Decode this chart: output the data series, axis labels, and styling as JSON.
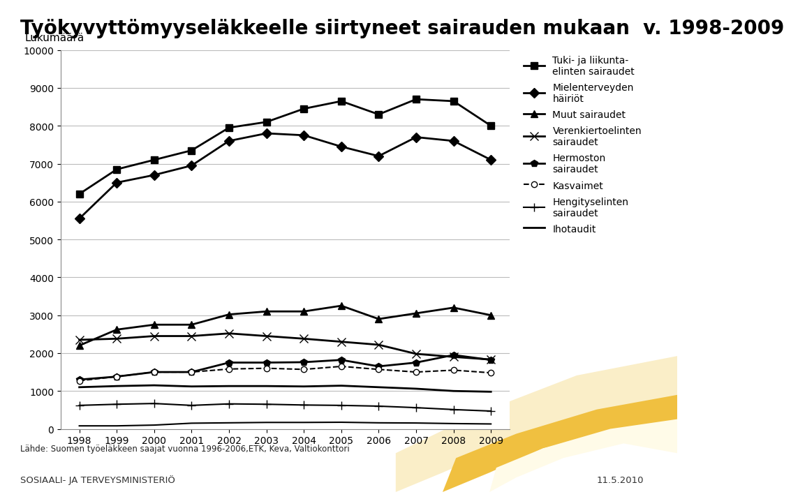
{
  "title": "Työkyvyttömyyseläkkeelle siirtyneet sairauden mukaan  v. 1998-2009",
  "ylabel": "Lukumäärä",
  "xlabel_note": "Lähde: Suomen työeläkkeen saajat vuonna 1996-2006,ETK, Keva, Valtiokonttori",
  "footer_left": "SOSIAALI- JA TERVEYSMINISTERIÖ",
  "footer_right": "11.5.2010",
  "years": [
    1998,
    1999,
    2000,
    2001,
    2002,
    2003,
    2004,
    2005,
    2006,
    2007,
    2008,
    2009
  ],
  "series": [
    {
      "label": "Tuki- ja liikunta-\nelinten sairaudet",
      "marker": "s",
      "linestyle": "-",
      "color": "#000000",
      "linewidth": 2.0,
      "markersize": 7,
      "markerfacecolor": "#000000",
      "values": [
        6200,
        6850,
        7100,
        7350,
        7950,
        8100,
        8450,
        8650,
        8300,
        8700,
        8650,
        8000
      ]
    },
    {
      "label": "Mielenterveyden\nhäiriöt",
      "marker": "D",
      "linestyle": "-",
      "color": "#000000",
      "linewidth": 2.0,
      "markersize": 7,
      "markerfacecolor": "#000000",
      "values": [
        5550,
        6500,
        6700,
        6950,
        7600,
        7800,
        7750,
        7450,
        7200,
        7700,
        7600,
        7100
      ]
    },
    {
      "label": "Muut sairaudet",
      "marker": "^",
      "linestyle": "-",
      "color": "#000000",
      "linewidth": 2.0,
      "markersize": 7,
      "markerfacecolor": "#000000",
      "values": [
        2200,
        2620,
        2750,
        2750,
        3020,
        3100,
        3100,
        3250,
        2900,
        3050,
        3200,
        3000
      ]
    },
    {
      "label": "Verenkiertoelinten\nsairaudet",
      "marker": "x",
      "linestyle": "-",
      "color": "#000000",
      "linewidth": 2.0,
      "markersize": 8,
      "markerfacecolor": "#000000",
      "values": [
        2350,
        2380,
        2450,
        2450,
        2520,
        2450,
        2380,
        2300,
        2220,
        1980,
        1900,
        1830
      ]
    },
    {
      "label": "Hermoston\nsairaudet",
      "marker": "p",
      "linestyle": "-",
      "color": "#000000",
      "linewidth": 2.0,
      "markersize": 7,
      "markerfacecolor": "#000000",
      "values": [
        1300,
        1380,
        1500,
        1500,
        1750,
        1750,
        1760,
        1820,
        1650,
        1750,
        1950,
        1820
      ]
    },
    {
      "label": "Kasvaimet",
      "marker": "o",
      "linestyle": "--",
      "color": "#000000",
      "linewidth": 1.5,
      "markersize": 6,
      "markerfacecolor": "#ffffff",
      "values": [
        1270,
        1380,
        1500,
        1500,
        1580,
        1600,
        1570,
        1650,
        1570,
        1500,
        1550,
        1480
      ]
    },
    {
      "label": "Hengityselinten\nsairaudet",
      "marker": "+",
      "linestyle": "-",
      "color": "#000000",
      "linewidth": 1.5,
      "markersize": 8,
      "markerfacecolor": "#000000",
      "values": [
        620,
        650,
        670,
        620,
        660,
        650,
        630,
        620,
        600,
        560,
        510,
        470
      ]
    },
    {
      "label": "Ihotaudit",
      "marker": null,
      "linestyle": "-",
      "color": "#000000",
      "linewidth": 2.0,
      "markersize": 0,
      "markerfacecolor": "#000000",
      "values": [
        1100,
        1130,
        1150,
        1120,
        1130,
        1130,
        1120,
        1140,
        1100,
        1060,
        1000,
        980
      ]
    },
    {
      "label": null,
      "marker": null,
      "linestyle": "-",
      "color": "#000000",
      "linewidth": 1.5,
      "markersize": 0,
      "markerfacecolor": "#000000",
      "values": [
        80,
        80,
        100,
        150,
        160,
        170,
        170,
        175,
        160,
        155,
        140,
        130
      ]
    }
  ],
  "ylim": [
    0,
    10000
  ],
  "yticks": [
    0,
    1000,
    2000,
    3000,
    4000,
    5000,
    6000,
    7000,
    8000,
    9000,
    10000
  ],
  "background_color": "#ffffff",
  "grid_color": "#bbbbbb",
  "title_fontsize": 20,
  "axis_fontsize": 11,
  "tick_fontsize": 10,
  "legend_fontsize": 10
}
